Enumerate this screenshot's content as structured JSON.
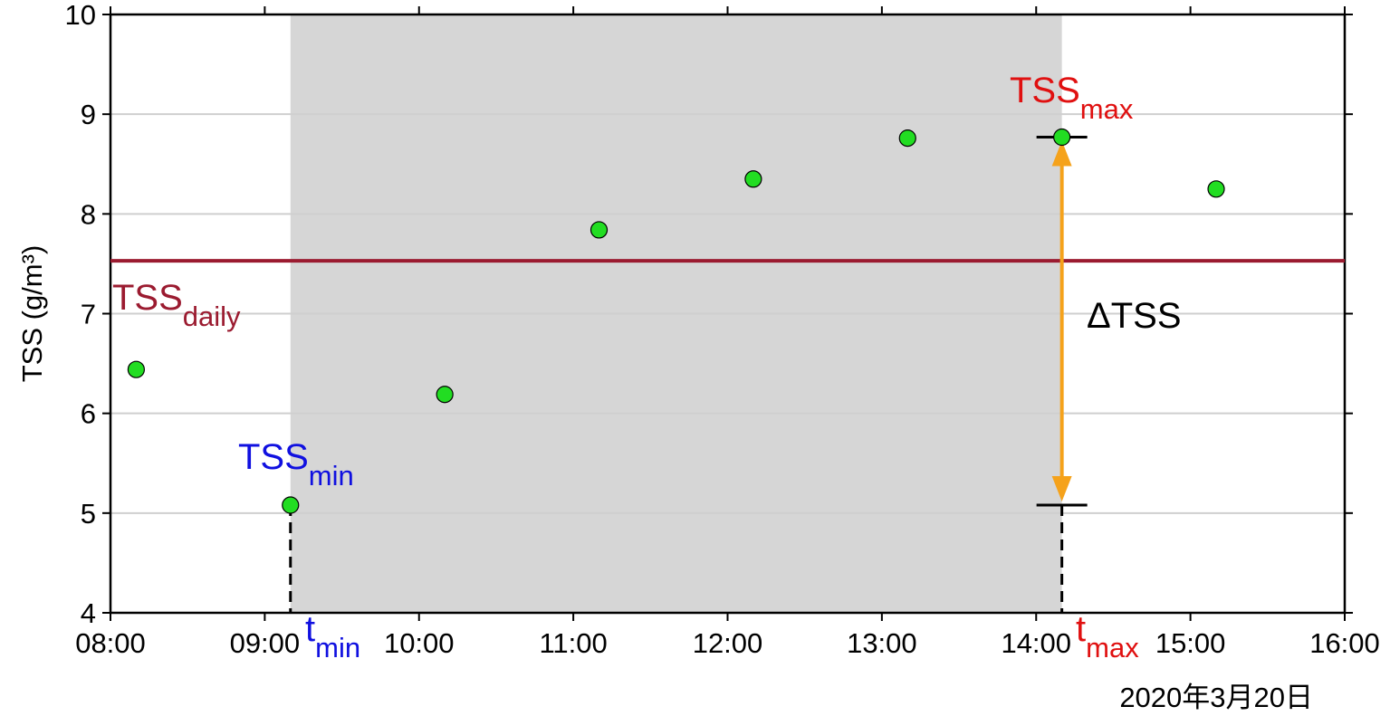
{
  "chart_data": {
    "type": "scatter",
    "x": [
      "08:10",
      "09:10",
      "10:10",
      "11:10",
      "12:10",
      "13:10",
      "14:10",
      "15:10"
    ],
    "values": [
      6.44,
      5.08,
      6.19,
      7.84,
      8.35,
      8.76,
      8.77,
      8.25
    ],
    "color": "#22dd22",
    "xlim": [
      "08:00",
      "16:00"
    ],
    "xticks": [
      "08:00",
      "09:00",
      "10:00",
      "11:00",
      "12:00",
      "13:00",
      "14:00",
      "15:00",
      "16:00"
    ],
    "ylim": [
      4,
      10
    ],
    "yticks": [
      4,
      5,
      6,
      7,
      8,
      9,
      10
    ],
    "grid": true,
    "y_label": "TSS (g/m³)",
    "date_label": "2020年3月20日",
    "shade": [
      "09:10",
      "14:10"
    ],
    "daily_mean": 7.53,
    "daily_color": "#9b1b30",
    "annotations": {
      "tss_daily": {
        "text": "TSS",
        "sub": "daily"
      },
      "tss_min": {
        "text": "TSS",
        "sub": "min"
      },
      "tss_max": {
        "text": "TSS",
        "sub": "max"
      },
      "t_min": {
        "text": "t",
        "sub": "min"
      },
      "t_max": {
        "text": "t",
        "sub": "max"
      },
      "delta": "ΔTSS"
    }
  }
}
